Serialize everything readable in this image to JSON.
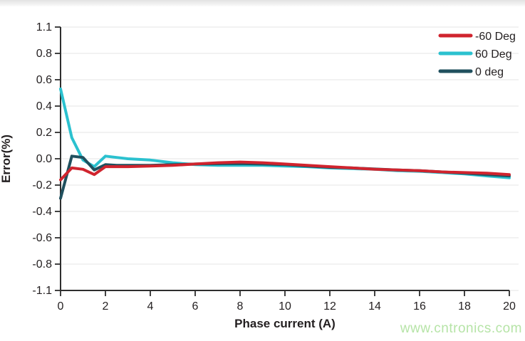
{
  "page": {
    "watermark": "www.cntronics.com",
    "watermark_color": "#b6e4a7",
    "background": "#ffffff",
    "top_band_color": "#e2e2e2"
  },
  "chart_data": {
    "type": "line",
    "title": "",
    "xlabel": "Phase current (A)",
    "ylabel": "Error(%)",
    "xlim": [
      0,
      20
    ],
    "x_ticks": [
      "0",
      "2",
      "4",
      "6",
      "8",
      "10",
      "12",
      "14",
      "16",
      "18",
      "20"
    ],
    "y_ticks": [
      "1.1",
      "0.8",
      "0.6",
      "0.4",
      "0.2",
      "0.0",
      "-0.2",
      "-0.4",
      "-0.6",
      "-0.8",
      "-1.1"
    ],
    "grid": "horizontal",
    "legend_position": "top-right",
    "axis_color": "#2e2e2e",
    "grid_color": "#e9e9e9",
    "text_color": "#231f20",
    "x": [
      0,
      0.5,
      1,
      1.5,
      2,
      2.5,
      3,
      4,
      5,
      6,
      7,
      8,
      9,
      10,
      11,
      12,
      13,
      14,
      15,
      16,
      17,
      18,
      19,
      20
    ],
    "series": [
      {
        "name": "-60 Deg",
        "color": "#d0242e",
        "values": [
          -0.16,
          -0.07,
          -0.08,
          -0.12,
          -0.06,
          -0.06,
          -0.06,
          -0.055,
          -0.05,
          -0.04,
          -0.03,
          -0.025,
          -0.03,
          -0.04,
          -0.05,
          -0.06,
          -0.07,
          -0.08,
          -0.085,
          -0.09,
          -0.1,
          -0.105,
          -0.11,
          -0.12
        ]
      },
      {
        "name": "60 Deg",
        "color": "#2bc1cf",
        "values": [
          0.53,
          0.16,
          -0.01,
          -0.06,
          0.02,
          0.01,
          0.0,
          -0.01,
          -0.03,
          -0.045,
          -0.05,
          -0.05,
          -0.05,
          -0.055,
          -0.06,
          -0.07,
          -0.075,
          -0.08,
          -0.09,
          -0.095,
          -0.105,
          -0.115,
          -0.13,
          -0.145
        ]
      },
      {
        "name": "0 deg",
        "color": "#20505e",
        "values": [
          -0.3,
          0.02,
          0.01,
          -0.085,
          -0.045,
          -0.05,
          -0.05,
          -0.05,
          -0.045,
          -0.04,
          -0.038,
          -0.036,
          -0.04,
          -0.045,
          -0.055,
          -0.065,
          -0.07,
          -0.078,
          -0.085,
          -0.09,
          -0.1,
          -0.11,
          -0.12,
          -0.13
        ]
      }
    ]
  }
}
